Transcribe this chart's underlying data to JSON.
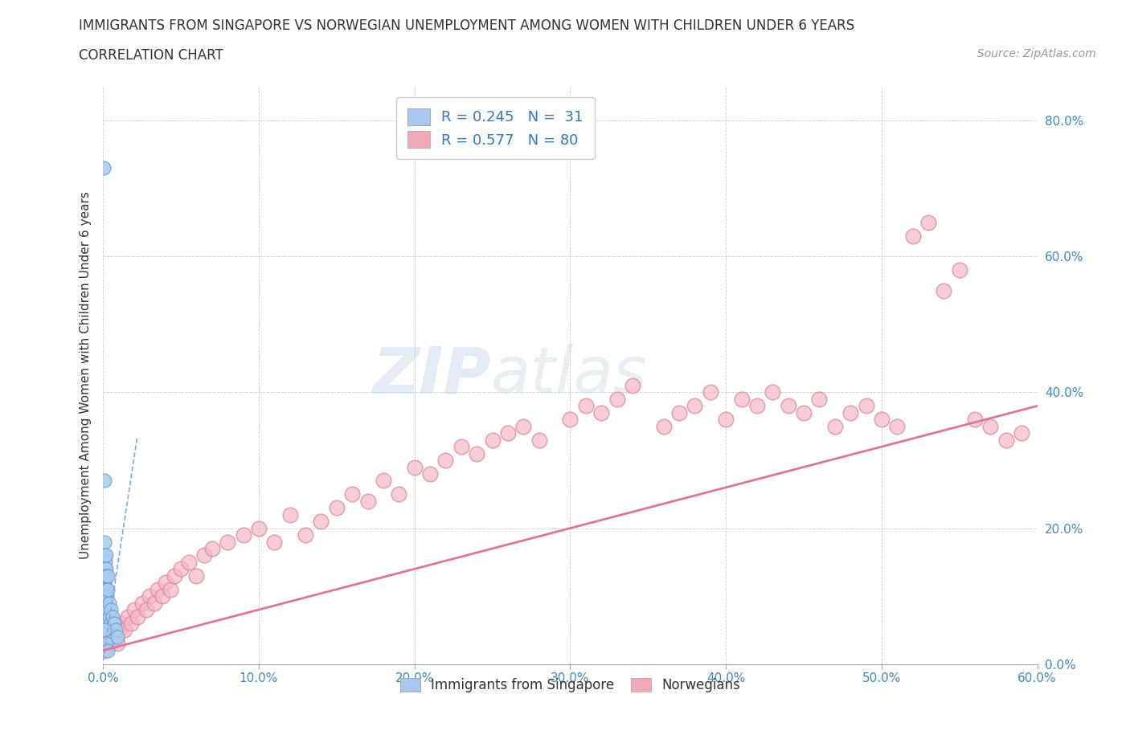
{
  "title_line1": "IMMIGRANTS FROM SINGAPORE VS NORWEGIAN UNEMPLOYMENT AMONG WOMEN WITH CHILDREN UNDER 6 YEARS",
  "title_line2": "CORRELATION CHART",
  "source": "Source: ZipAtlas.com",
  "xlim": [
    0,
    0.6
  ],
  "ylim": [
    0,
    0.85
  ],
  "legend_r1": "R = 0.245   N =  31",
  "legend_r2": "R = 0.577   N = 80",
  "legend_color1": "#a8c8f0",
  "legend_color2": "#f0a8b8",
  "scatter_blue_x": [
    0.0005,
    0.0008,
    0.001,
    0.001,
    0.001,
    0.001,
    0.0012,
    0.0015,
    0.002,
    0.002,
    0.002,
    0.002,
    0.002,
    0.0025,
    0.003,
    0.003,
    0.003,
    0.003,
    0.004,
    0.004,
    0.005,
    0.005,
    0.005,
    0.006,
    0.007,
    0.008,
    0.009,
    0.001,
    0.001,
    0.002,
    0.003
  ],
  "scatter_blue_y": [
    0.73,
    0.18,
    0.16,
    0.14,
    0.12,
    0.09,
    0.15,
    0.13,
    0.16,
    0.14,
    0.13,
    0.11,
    0.08,
    0.1,
    0.13,
    0.11,
    0.08,
    0.06,
    0.09,
    0.07,
    0.08,
    0.06,
    0.04,
    0.07,
    0.06,
    0.05,
    0.04,
    0.27,
    0.05,
    0.03,
    0.02
  ],
  "scatter_pink_x": [
    0.001,
    0.002,
    0.003,
    0.004,
    0.005,
    0.006,
    0.007,
    0.008,
    0.009,
    0.01,
    0.012,
    0.014,
    0.016,
    0.018,
    0.02,
    0.022,
    0.025,
    0.028,
    0.03,
    0.033,
    0.035,
    0.038,
    0.04,
    0.043,
    0.046,
    0.05,
    0.055,
    0.06,
    0.065,
    0.07,
    0.08,
    0.09,
    0.1,
    0.11,
    0.12,
    0.13,
    0.14,
    0.15,
    0.16,
    0.17,
    0.18,
    0.19,
    0.2,
    0.21,
    0.22,
    0.23,
    0.24,
    0.25,
    0.26,
    0.27,
    0.28,
    0.3,
    0.31,
    0.32,
    0.33,
    0.34,
    0.36,
    0.37,
    0.38,
    0.39,
    0.4,
    0.41,
    0.42,
    0.43,
    0.44,
    0.45,
    0.46,
    0.47,
    0.48,
    0.49,
    0.5,
    0.51,
    0.52,
    0.53,
    0.54,
    0.55,
    0.56,
    0.57,
    0.58,
    0.59
  ],
  "scatter_pink_y": [
    0.02,
    0.03,
    0.04,
    0.05,
    0.03,
    0.04,
    0.05,
    0.04,
    0.03,
    0.05,
    0.06,
    0.05,
    0.07,
    0.06,
    0.08,
    0.07,
    0.09,
    0.08,
    0.1,
    0.09,
    0.11,
    0.1,
    0.12,
    0.11,
    0.13,
    0.14,
    0.15,
    0.13,
    0.16,
    0.17,
    0.18,
    0.19,
    0.2,
    0.18,
    0.22,
    0.19,
    0.21,
    0.23,
    0.25,
    0.24,
    0.27,
    0.25,
    0.29,
    0.28,
    0.3,
    0.32,
    0.31,
    0.33,
    0.34,
    0.35,
    0.33,
    0.36,
    0.38,
    0.37,
    0.39,
    0.41,
    0.35,
    0.37,
    0.38,
    0.4,
    0.36,
    0.39,
    0.38,
    0.4,
    0.38,
    0.37,
    0.39,
    0.35,
    0.37,
    0.38,
    0.36,
    0.35,
    0.63,
    0.65,
    0.55,
    0.58,
    0.36,
    0.35,
    0.33,
    0.34
  ],
  "blue_trend_x": [
    0.0,
    0.022
  ],
  "blue_trend_slope": 15.0,
  "blue_trend_intercept": 0.005,
  "pink_trend_x0": 0.0,
  "pink_trend_x1": 0.6,
  "pink_trend_slope": 0.6,
  "pink_trend_intercept": 0.02,
  "blue_scatter_color": "#aaccee",
  "blue_scatter_edge": "#6699cc",
  "pink_scatter_color": "#f5b8c8",
  "pink_scatter_edge": "#dd8899",
  "blue_line_color": "#88aadd",
  "pink_line_color": "#dd7799",
  "watermark_zip": "ZIP",
  "watermark_atlas": "atlas",
  "background_color": "#ffffff",
  "grid_color": "#cccccc"
}
